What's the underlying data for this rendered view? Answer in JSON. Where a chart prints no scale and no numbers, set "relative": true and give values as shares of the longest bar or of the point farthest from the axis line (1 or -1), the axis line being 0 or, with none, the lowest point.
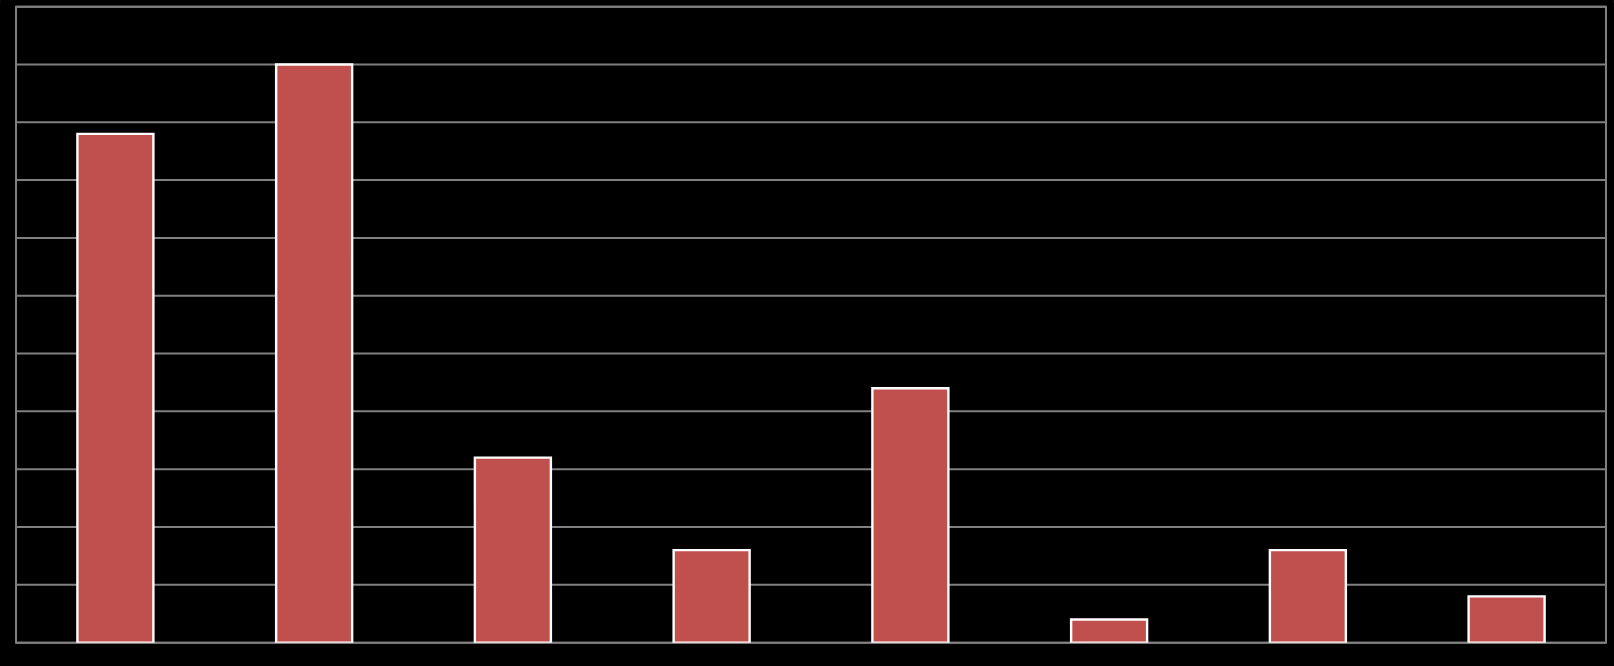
{
  "chart_data": {
    "type": "bar",
    "relative": true,
    "grid": "y",
    "categories": [
      null,
      null,
      null,
      null,
      null,
      null,
      null,
      null
    ],
    "values": [
      0.88,
      1,
      0.32,
      0.16,
      0.44,
      0.04,
      0.16,
      0.08
    ],
    "color": "#c0504d"
  }
}
